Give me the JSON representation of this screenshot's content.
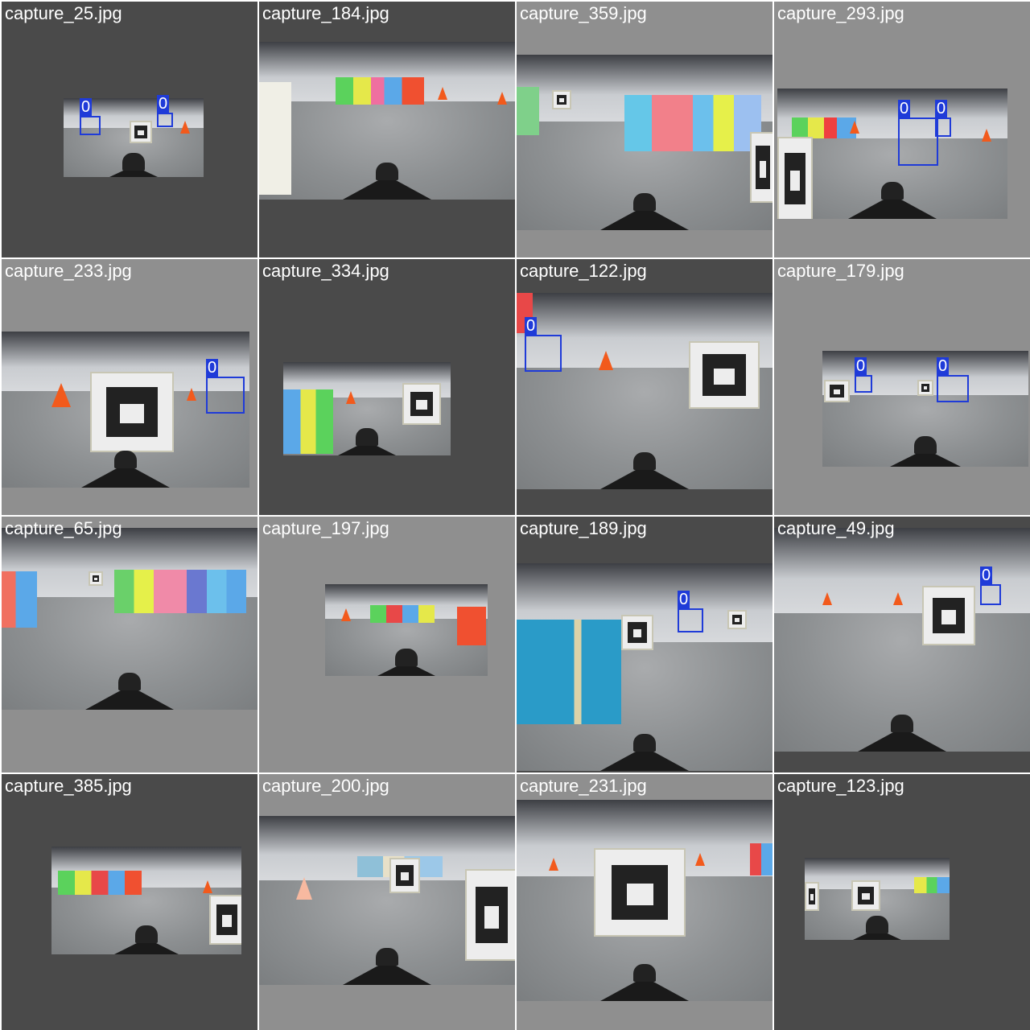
{
  "tiles": [
    {
      "file": "capture_25.jpg",
      "bg": "dark",
      "detections": [
        {
          "label": "0"
        },
        {
          "label": "0"
        }
      ]
    },
    {
      "file": "capture_184.jpg",
      "bg": "dark",
      "detections": []
    },
    {
      "file": "capture_359.jpg",
      "bg": "light",
      "detections": []
    },
    {
      "file": "capture_293.jpg",
      "bg": "light",
      "detections": [
        {
          "label": "0"
        },
        {
          "label": "0"
        }
      ]
    },
    {
      "file": "capture_233.jpg",
      "bg": "light",
      "detections": [
        {
          "label": "0"
        }
      ]
    },
    {
      "file": "capture_334.jpg",
      "bg": "dark",
      "detections": []
    },
    {
      "file": "capture_122.jpg",
      "bg": "dark",
      "detections": [
        {
          "label": "0"
        }
      ]
    },
    {
      "file": "capture_179.jpg",
      "bg": "light",
      "detections": [
        {
          "label": "0"
        },
        {
          "label": "0"
        }
      ]
    },
    {
      "file": "capture_65.jpg",
      "bg": "light",
      "detections": []
    },
    {
      "file": "capture_197.jpg",
      "bg": "light",
      "detections": []
    },
    {
      "file": "capture_189.jpg",
      "bg": "dark",
      "detections": [
        {
          "label": "0"
        }
      ]
    },
    {
      "file": "capture_49.jpg",
      "bg": "dark",
      "detections": [
        {
          "label": "0"
        }
      ]
    },
    {
      "file": "capture_385.jpg",
      "bg": "dark",
      "detections": []
    },
    {
      "file": "capture_200.jpg",
      "bg": "light",
      "detections": []
    },
    {
      "file": "capture_231.jpg",
      "bg": "light",
      "detections": []
    },
    {
      "file": "capture_123.jpg",
      "bg": "dark",
      "detections": []
    }
  ],
  "colors": {
    "bbox": "#1f3bd8",
    "cone": "#f25a1c",
    "tile_dark": "#4a4a4a",
    "tile_light": "#8f8f8f"
  }
}
